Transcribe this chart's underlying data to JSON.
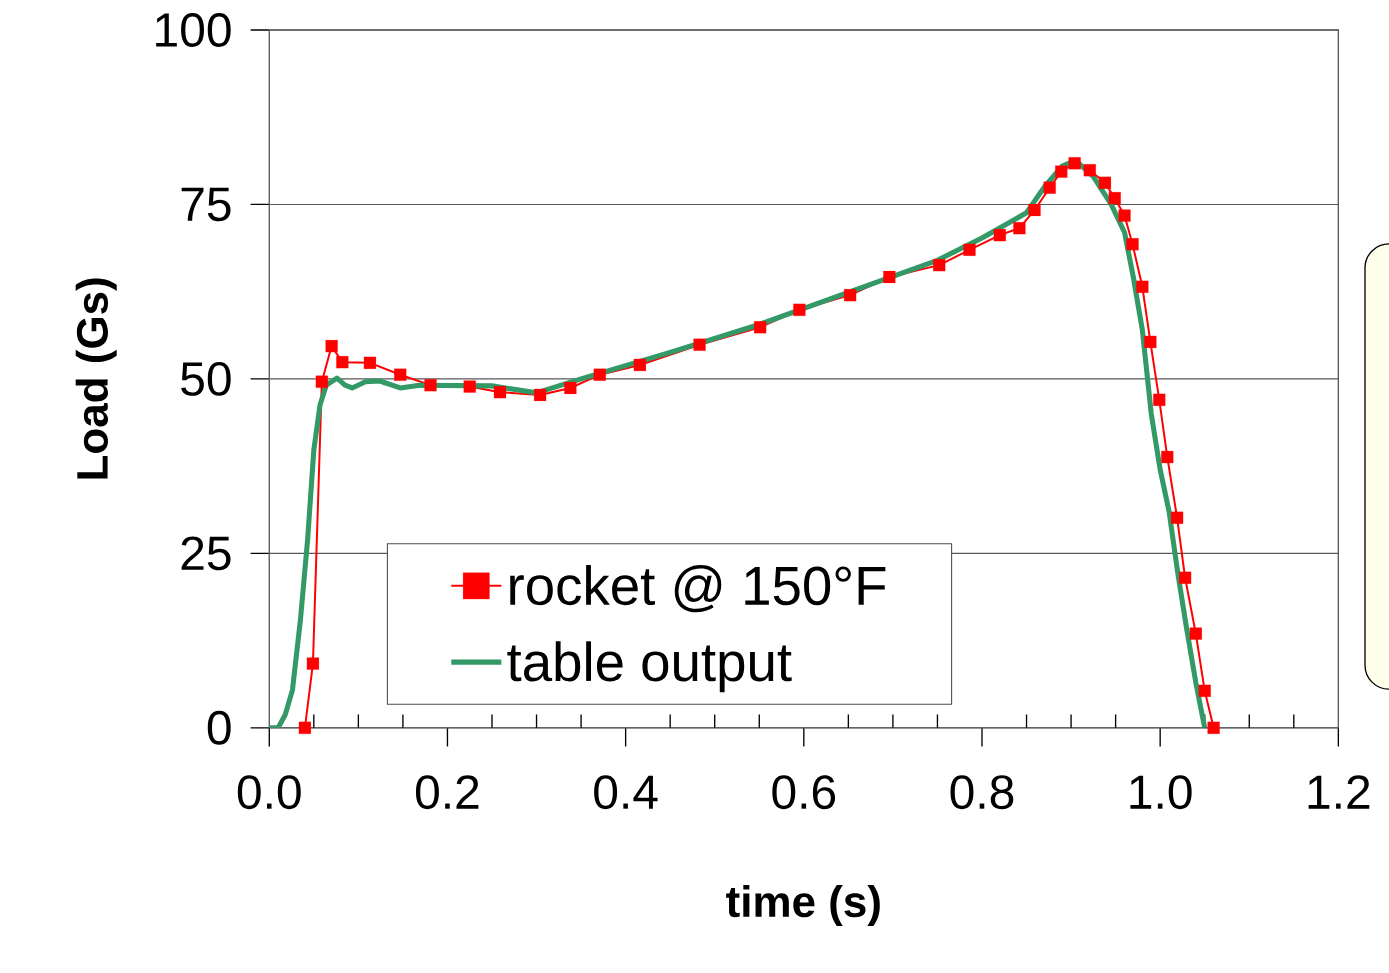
{
  "chart_data": {
    "type": "line",
    "xlabel": "time (s)",
    "ylabel": "Load (Gs)",
    "xlim": [
      0,
      1.2
    ],
    "ylim": [
      0,
      100
    ],
    "xticks": [
      {
        "value": 0,
        "label": "0.0"
      },
      {
        "value": 0.05,
        "label": null
      },
      {
        "value": 0.1,
        "label": null
      },
      {
        "value": 0.15,
        "label": null
      },
      {
        "value": 0.2,
        "label": "0.2"
      },
      {
        "value": 0.25,
        "label": null
      },
      {
        "value": 0.3,
        "label": null
      },
      {
        "value": 0.35,
        "label": null
      },
      {
        "value": 0.4,
        "label": "0.4"
      },
      {
        "value": 0.45,
        "label": null
      },
      {
        "value": 0.5,
        "label": null
      },
      {
        "value": 0.55,
        "label": null
      },
      {
        "value": 0.6,
        "label": "0.6"
      },
      {
        "value": 0.65,
        "label": null
      },
      {
        "value": 0.7,
        "label": null
      },
      {
        "value": 0.75,
        "label": null
      },
      {
        "value": 0.8,
        "label": "0.8"
      },
      {
        "value": 0.85,
        "label": null
      },
      {
        "value": 0.9,
        "label": null
      },
      {
        "value": 0.95,
        "label": null
      },
      {
        "value": 1.0,
        "label": "1.0"
      },
      {
        "value": 1.05,
        "label": null
      },
      {
        "value": 1.1,
        "label": null
      },
      {
        "value": 1.15,
        "label": null
      },
      {
        "value": 1.2,
        "label": "1.2"
      }
    ],
    "yticks": [
      0,
      25,
      50,
      75,
      100
    ],
    "grid": "y",
    "legend": "bottom",
    "series": [
      {
        "name": "rocket @ 150°F",
        "color": "#ff0000",
        "marker": "square",
        "x": [
          0.04,
          0.049,
          0.059,
          0.07,
          0.082,
          0.113,
          0.147,
          0.181,
          0.225,
          0.259,
          0.304,
          0.338,
          0.371,
          0.416,
          0.483,
          0.551,
          0.595,
          0.652,
          0.696,
          0.752,
          0.786,
          0.82,
          0.842,
          0.859,
          0.876,
          0.889,
          0.904,
          0.921,
          0.938,
          0.949,
          0.96,
          0.969,
          0.98,
          0.989,
          0.999,
          1.008,
          1.019,
          1.028,
          1.04,
          1.05,
          1.06
        ],
        "values": [
          0,
          9.2,
          49.6,
          54.7,
          52.4,
          52.3,
          50.6,
          49.1,
          48.9,
          48.1,
          47.7,
          48.7,
          50.6,
          52,
          54.9,
          57.4,
          59.9,
          62,
          64.6,
          66.3,
          68.5,
          70.6,
          71.6,
          74.2,
          77.4,
          79.7,
          80.9,
          79.9,
          78.1,
          75.9,
          73.4,
          69.3,
          63.2,
          55.3,
          47,
          38.8,
          30.1,
          21.5,
          13.5,
          5.3,
          0
        ]
      },
      {
        "name": "table output",
        "color": "#339966",
        "marker": "none",
        "x": [
          0,
          0.01,
          0.018,
          0.026,
          0.035,
          0.043,
          0.05,
          0.057,
          0.064,
          0.076,
          0.085,
          0.093,
          0.108,
          0.124,
          0.147,
          0.169,
          0.25,
          0.3,
          0.35,
          0.45,
          0.55,
          0.65,
          0.75,
          0.8,
          0.85,
          0.87,
          0.89,
          0.905,
          0.925,
          0.945,
          0.96,
          0.97,
          0.98,
          0.99,
          1.0,
          1.01,
          1.02,
          1.03,
          1.04,
          1.05
        ],
        "values": [
          0,
          0,
          1.9,
          5.4,
          15.5,
          26.9,
          39.8,
          46.3,
          49.1,
          50.1,
          49.1,
          48.7,
          49.6,
          49.7,
          48.7,
          49.1,
          49,
          48,
          50,
          53.8,
          57.8,
          62.4,
          67,
          70.2,
          73.8,
          77.5,
          80.5,
          81.3,
          79,
          75,
          71,
          64.5,
          57,
          45,
          37,
          31,
          22,
          14,
          6.5,
          0
        ]
      }
    ]
  }
}
